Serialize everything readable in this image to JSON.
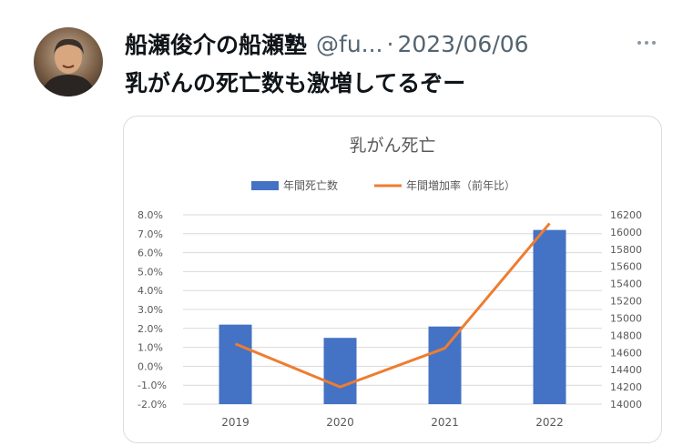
{
  "tweet": {
    "display_name": "船瀬俊介の船瀬塾",
    "handle": "@fu...",
    "separator": "·",
    "date": "2023/06/06",
    "text": "乳がんの死亡数も激増してるぞー",
    "more_icon": "more-horizontal-icon"
  },
  "chart_data": {
    "type": "bar",
    "title": "乳がん死亡",
    "categories": [
      "2019",
      "2020",
      "2021",
      "2022"
    ],
    "series": [
      {
        "name": "年間死亡数",
        "type": "bar",
        "axis": "left",
        "color": "#4472C4",
        "values": [
          2.2,
          1.5,
          2.1,
          7.2
        ]
      },
      {
        "name": "年間増加率（前年比）",
        "type": "line",
        "axis": "right",
        "color": "#ED7D31",
        "values": [
          14700,
          14200,
          14650,
          16100
        ]
      }
    ],
    "y_left": {
      "min": -2.0,
      "max": 8.0,
      "step": 1.0,
      "ticks": [
        "-2.0%",
        "-1.0%",
        "0.0%",
        "1.0%",
        "2.0%",
        "3.0%",
        "4.0%",
        "5.0%",
        "6.0%",
        "7.0%",
        "8.0%"
      ]
    },
    "y_right": {
      "min": 14000,
      "max": 16200,
      "step": 200,
      "ticks": [
        "14000",
        "14200",
        "14400",
        "14600",
        "14800",
        "15000",
        "15200",
        "15400",
        "15600",
        "15800",
        "16000",
        "16200"
      ]
    },
    "legend_position": "top",
    "grid": true
  }
}
